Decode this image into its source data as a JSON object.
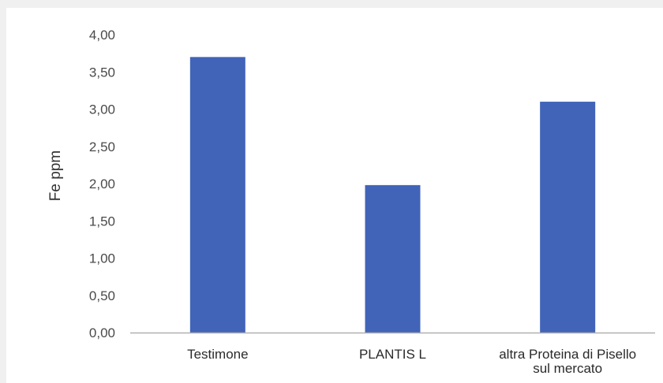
{
  "chart_data": {
    "type": "bar",
    "title": "",
    "xlabel": "",
    "ylabel": "Fe ppm",
    "ylim": [
      0,
      4
    ],
    "yticks": [
      "0,00",
      "0,50",
      "1,00",
      "1,50",
      "2,00",
      "2,50",
      "3,00",
      "3,50",
      "4,00"
    ],
    "ytick_values": [
      0,
      0.5,
      1,
      1.5,
      2,
      2.5,
      3,
      3.5,
      4
    ],
    "categories": [
      [
        "Testimone"
      ],
      [
        "PLANTIS L"
      ],
      [
        "altra Proteina di Pisello",
        "sul mercato"
      ]
    ],
    "values": [
      3.7,
      1.98,
      3.1
    ],
    "grid": false,
    "legend": "none",
    "bar_color": "#4164b8",
    "axis_color": "#b0b0b0"
  }
}
